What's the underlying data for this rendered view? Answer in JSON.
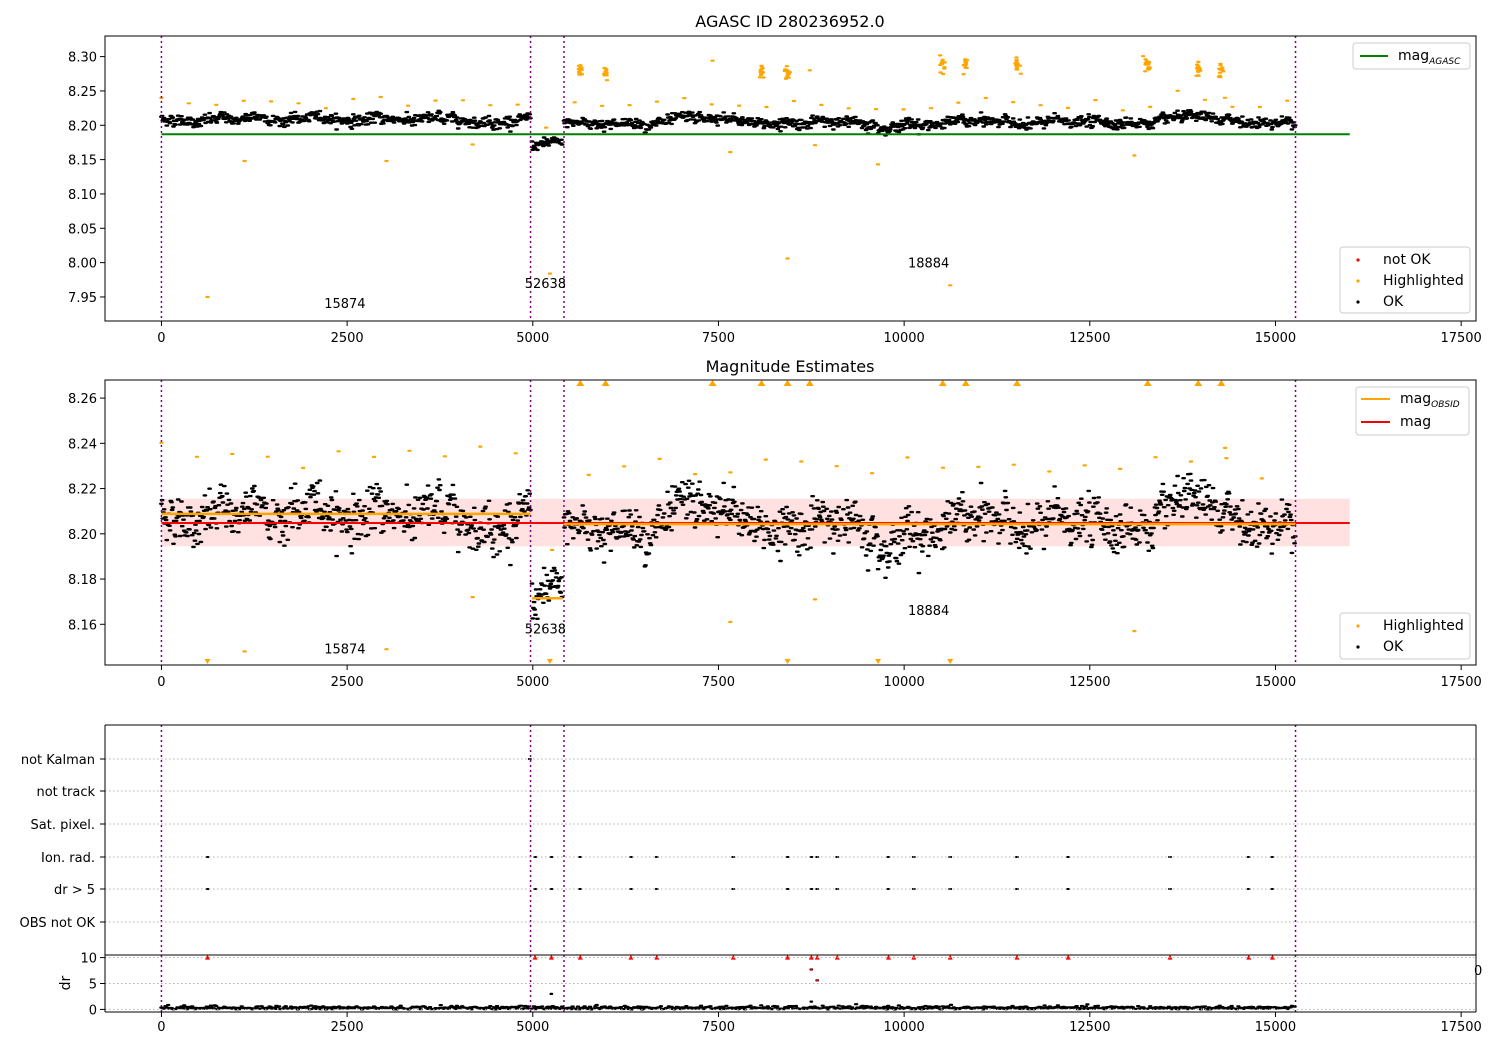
{
  "chart_data": [
    {
      "type": "scatter",
      "title": "AGASC ID 280236952.0",
      "xlim": [
        -760,
        17700
      ],
      "ylim": [
        7.915,
        8.33
      ],
      "xticks": [
        0,
        2500,
        5000,
        7500,
        10000,
        12500,
        15000,
        17500
      ],
      "xtick_labels": [
        "0",
        "2500",
        "5000",
        "7500",
        "10000",
        "12500",
        "15000",
        "17500"
      ],
      "yticks": [
        7.95,
        8.0,
        8.05,
        8.1,
        8.15,
        8.2,
        8.25,
        8.3
      ],
      "ytick_labels": [
        "7.95",
        "8.00",
        "8.05",
        "8.10",
        "8.15",
        "8.20",
        "8.25",
        "8.30"
      ],
      "obsid_boundaries": [
        0,
        4970,
        5420,
        15270
      ],
      "obsid_labels": [
        {
          "text": "15874",
          "x": 2470,
          "y": 7.934
        },
        {
          "text": "52638",
          "x": 5170,
          "y": 7.963
        },
        {
          "text": "18884",
          "x": 10330,
          "y": 7.993
        }
      ],
      "reference_line": {
        "name": "mag",
        "subscript": "AGASC",
        "y": 8.187,
        "x": [
          0,
          16000
        ],
        "color": "#008000"
      },
      "segments": [
        {
          "x": [
            0,
            4970
          ],
          "mean": 8.209,
          "noise": 0.007,
          "highlight_max": 8.236
        },
        {
          "x": [
            4990,
            5400
          ],
          "mean": 8.171,
          "noise": 0.006,
          "highlight_max": 8.24
        },
        {
          "x": [
            5420,
            15270
          ],
          "mean": 8.204,
          "noise": 0.007,
          "highlight_max": 8.24
        }
      ],
      "highlight_clusters": [
        {
          "x": 5640,
          "y": 8.28
        },
        {
          "x": 5980,
          "y": 8.277
        },
        {
          "x": 8080,
          "y": 8.28
        },
        {
          "x": 8430,
          "y": 8.276
        },
        {
          "x": 10520,
          "y": 8.29
        },
        {
          "x": 10830,
          "y": 8.287
        },
        {
          "x": 11520,
          "y": 8.288
        },
        {
          "x": 13280,
          "y": 8.288
        },
        {
          "x": 13960,
          "y": 8.282
        },
        {
          "x": 14270,
          "y": 8.28
        }
      ],
      "highlight_singles": [
        {
          "x": 7420,
          "y": 8.294
        },
        {
          "x": 8730,
          "y": 8.28
        },
        {
          "x": 14320,
          "y": 8.24
        },
        {
          "x": 620,
          "y": 7.95
        },
        {
          "x": 1120,
          "y": 8.148
        },
        {
          "x": 3030,
          "y": 8.148
        },
        {
          "x": 5230,
          "y": 7.984
        },
        {
          "x": 8430,
          "y": 8.006
        },
        {
          "x": 9650,
          "y": 8.143
        },
        {
          "x": 10620,
          "y": 7.967
        },
        {
          "x": 13100,
          "y": 8.156
        },
        {
          "x": 4190,
          "y": 8.172
        },
        {
          "x": 7660,
          "y": 8.161
        },
        {
          "x": 8800,
          "y": 8.171
        }
      ],
      "legends": [
        {
          "placement": "upper-right",
          "entries": [
            {
              "label": "mag",
              "subscript": "AGASC",
              "kind": "line",
              "color": "#008000"
            }
          ]
        },
        {
          "placement": "lower-right",
          "entries": [
            {
              "label": "not OK",
              "kind": "point",
              "color": "#ff0000"
            },
            {
              "label": "Highlighted",
              "kind": "point",
              "color": "#ffa500"
            },
            {
              "label": "OK",
              "kind": "point",
              "color": "#000000"
            }
          ]
        }
      ]
    },
    {
      "type": "scatter",
      "title": "Magnitude Estimates",
      "xlim": [
        -760,
        17700
      ],
      "ylim": [
        8.142,
        8.268
      ],
      "xticks": [
        0,
        2500,
        5000,
        7500,
        10000,
        12500,
        15000,
        17500
      ],
      "xtick_labels": [
        "0",
        "2500",
        "5000",
        "7500",
        "10000",
        "12500",
        "15000",
        "17500"
      ],
      "yticks": [
        8.16,
        8.18,
        8.2,
        8.22,
        8.24,
        8.26
      ],
      "ytick_labels": [
        "8.16",
        "8.18",
        "8.20",
        "8.22",
        "8.24",
        "8.26"
      ],
      "obsid_boundaries": [
        0,
        4970,
        5420,
        15270
      ],
      "obsid_labels": [
        {
          "text": "15874",
          "x": 2470,
          "y": 8.147
        },
        {
          "text": "52638",
          "x": 5170,
          "y": 8.156
        },
        {
          "text": "18884",
          "x": 10330,
          "y": 8.164
        }
      ],
      "mag_line": {
        "name": "mag",
        "y": 8.2048,
        "x": [
          0,
          16000
        ],
        "color": "#ff0000"
      },
      "mag_band": {
        "y": [
          8.1945,
          8.2155
        ],
        "x": [
          0,
          16000
        ],
        "color": "#ffc8c8"
      },
      "obsid_lines": [
        {
          "x": [
            0,
            4970
          ],
          "y": 8.2088
        },
        {
          "x": [
            4990,
            5400
          ],
          "y": 8.1715
        },
        {
          "x": [
            5420,
            15270
          ],
          "y": 8.2043
        }
      ],
      "segments": [
        {
          "x": [
            0,
            4970
          ],
          "mean": 8.209,
          "noise": 0.007,
          "highlight_max": 8.236
        },
        {
          "x": [
            4990,
            5400
          ],
          "mean": 8.171,
          "noise": 0.006,
          "highlight_max": 8.24
        },
        {
          "x": [
            5420,
            15270
          ],
          "mean": 8.204,
          "noise": 0.007,
          "highlight_max": 8.24
        }
      ],
      "highlight_clusters_top": [
        5640,
        5980,
        7420,
        8080,
        8430,
        8730,
        10520,
        10830,
        11520,
        13280,
        13960,
        14270
      ],
      "highlight_clusters_bottom": [
        620,
        5230,
        8430,
        9650,
        10620
      ],
      "highlight_singles": [
        {
          "x": 1120,
          "y": 8.148
        },
        {
          "x": 3030,
          "y": 8.149
        },
        {
          "x": 4190,
          "y": 8.172
        },
        {
          "x": 7660,
          "y": 8.161
        },
        {
          "x": 13100,
          "y": 8.157
        },
        {
          "x": 8800,
          "y": 8.171
        },
        {
          "x": 14320,
          "y": 8.238
        }
      ],
      "legends": [
        {
          "placement": "upper-right",
          "entries": [
            {
              "label": "mag",
              "subscript": "OBSID",
              "kind": "line",
              "color": "#ffa500"
            },
            {
              "label": "mag",
              "kind": "line",
              "color": "#ff0000"
            }
          ]
        },
        {
          "placement": "lower-right",
          "entries": [
            {
              "label": "Highlighted",
              "kind": "point",
              "color": "#ffa500"
            },
            {
              "label": "OK",
              "kind": "point",
              "color": "#000000"
            }
          ]
        }
      ]
    },
    {
      "type": "scatter",
      "title": "",
      "xlim": [
        -760,
        17700
      ],
      "category_axis": [
        "not Kalman",
        "not track",
        "Sat. pixel.",
        "Ion. rad.",
        "dr > 5",
        "OBS not OK"
      ],
      "obsid_boundaries": [
        0,
        4970,
        5420,
        15270
      ],
      "flag_times": [
        620,
        5030,
        5250,
        5640,
        6320,
        6670,
        7700,
        8430,
        8750,
        8830,
        9100,
        9790,
        10130,
        10620,
        11520,
        12210,
        13580,
        14640,
        14960
      ],
      "flags": {
        "not Kalman": [
          4960
        ],
        "Ion. rad.": "flag_times",
        "dr > 5": "flag_times"
      }
    },
    {
      "type": "scatter",
      "title": "",
      "ylabel": "dr",
      "xlim": [
        -760,
        17700
      ],
      "ylim": [
        -0.5,
        10.5
      ],
      "yticks": [
        0,
        5,
        10
      ],
      "ytick_labels": [
        "0",
        "5",
        "10"
      ],
      "xticks": [
        0,
        2500,
        5000,
        7500,
        10000,
        12500,
        15000,
        17500
      ],
      "xtick_labels": [
        "0",
        "2500",
        "5000",
        "7500",
        "10000",
        "12500",
        "15000",
        "17500"
      ],
      "obsid_boundaries": [
        0,
        4970,
        5420,
        15270
      ],
      "dr_baseline": 0.3,
      "dr_capped": 10,
      "dr_outliers": [
        {
          "x": 8750,
          "y": 7.7
        },
        {
          "x": 8830,
          "y": 5.6
        },
        {
          "x": 5250,
          "y": 3.0
        },
        {
          "x": 8750,
          "y": 1.5
        }
      ],
      "stray_tick_label": "0"
    }
  ]
}
